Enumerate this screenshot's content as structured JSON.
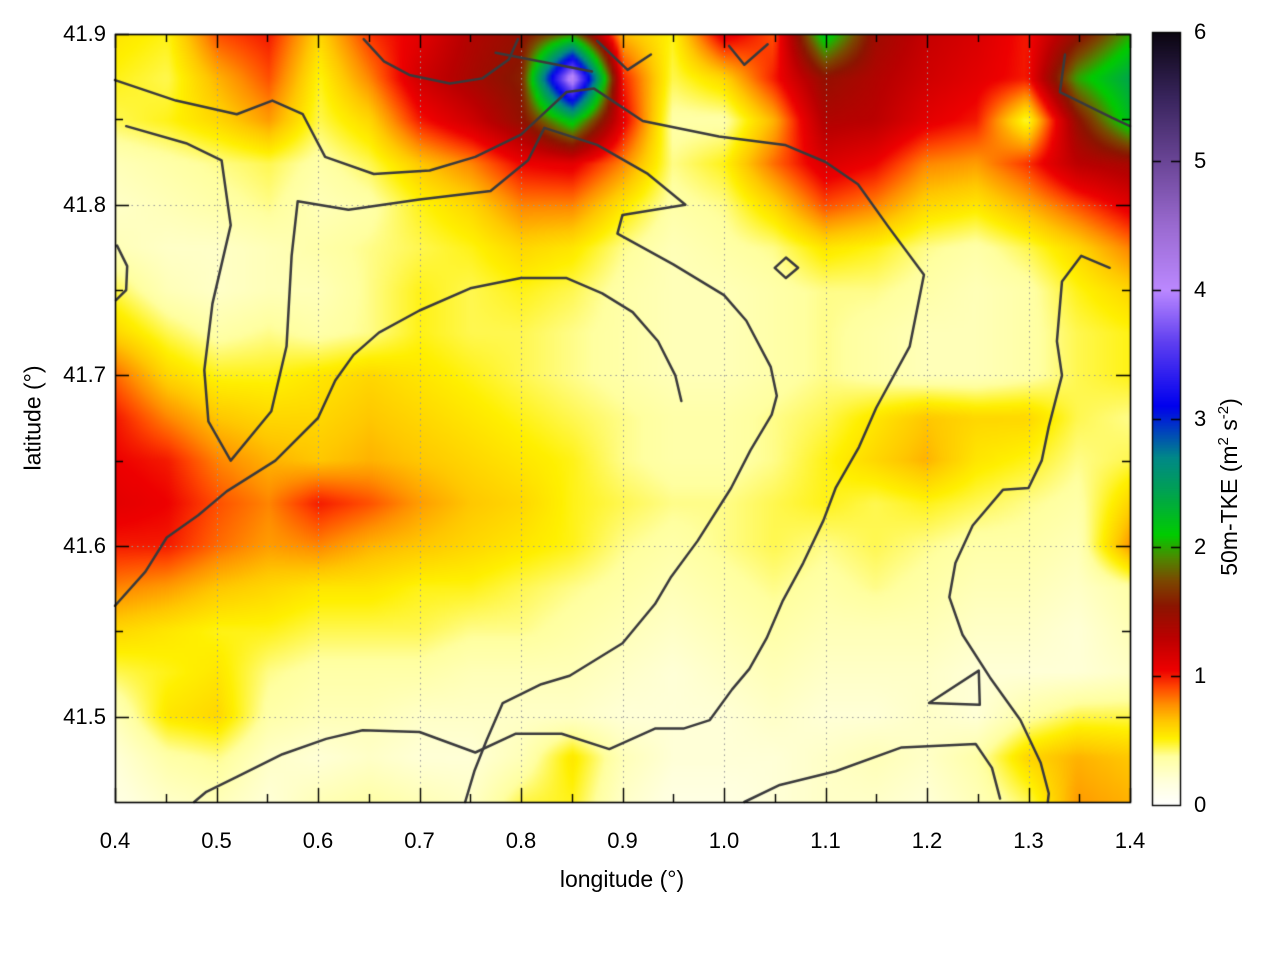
{
  "axes": {
    "xlabel": "longitude (°)",
    "ylabel": "latitude (°)"
  },
  "colorbar": {
    "label": {
      "pre": "50m-TKE (m",
      "sup1": "2",
      "mid": " s",
      "sup2": "-2",
      "post": ")"
    },
    "tick_labels": [
      "0",
      "1",
      "2",
      "3",
      "4",
      "5",
      "6"
    ],
    "tick_values": [
      0,
      1,
      2,
      3,
      4,
      5,
      6
    ],
    "range": [
      0,
      6
    ]
  },
  "chart_data": {
    "type": "heatmap",
    "title": "",
    "xlabel": "longitude (°)",
    "ylabel": "latitude (°)",
    "zlabel": "50m-TKE (m2 s-2)",
    "xlim": [
      0.4,
      1.4
    ],
    "ylim": [
      41.45,
      41.9
    ],
    "zlim": [
      0,
      6
    ],
    "grid_on": true,
    "x_major_ticks": [
      0.4,
      0.5,
      0.6,
      0.7,
      0.8,
      0.9,
      1.0,
      1.1,
      1.2,
      1.3,
      1.4
    ],
    "x_tick_labels": [
      "0.4",
      "0.5",
      "0.6",
      "0.7",
      "0.8",
      "0.9",
      "1.0",
      "1.1",
      "1.2",
      "1.3",
      "1.4"
    ],
    "x_minor_ticks": [
      0.45,
      0.55,
      0.65,
      0.75,
      0.85,
      0.95,
      1.05,
      1.15,
      1.25,
      1.35
    ],
    "y_major_ticks": [
      41.5,
      41.6,
      41.7,
      41.8,
      41.9
    ],
    "y_tick_labels": [
      "41.5",
      "41.6",
      "41.7",
      "41.8",
      "41.9"
    ],
    "y_minor_ticks": [
      41.55,
      41.65,
      41.75,
      41.85
    ],
    "x_gridlines": [
      0.5,
      0.6,
      0.7,
      0.8,
      0.9,
      1.0,
      1.1,
      1.2,
      1.3
    ],
    "y_gridlines": [
      41.5,
      41.6,
      41.7,
      41.8
    ],
    "palette_stops": [
      [
        0.0,
        "#ffffff"
      ],
      [
        0.18,
        "#ffffdd"
      ],
      [
        0.38,
        "#ffffa0"
      ],
      [
        0.52,
        "#fff000"
      ],
      [
        0.65,
        "#ffc800"
      ],
      [
        0.78,
        "#ff9000"
      ],
      [
        0.92,
        "#ff4500"
      ],
      [
        1.05,
        "#ee0000"
      ],
      [
        1.3,
        "#bb0000"
      ],
      [
        1.55,
        "#8b1500"
      ],
      [
        1.75,
        "#7a4a00"
      ],
      [
        1.92,
        "#4e8800"
      ],
      [
        2.1,
        "#00cc00"
      ],
      [
        2.45,
        "#00a055"
      ],
      [
        2.7,
        "#008888"
      ],
      [
        2.9,
        "#0044bb"
      ],
      [
        3.1,
        "#0000ee"
      ],
      [
        3.6,
        "#6040f0"
      ],
      [
        4.0,
        "#bb88ff"
      ],
      [
        4.5,
        "#9a6ad0"
      ],
      [
        5.0,
        "#6a4596"
      ],
      [
        5.5,
        "#38245c"
      ],
      [
        6.0,
        "#0a0510"
      ]
    ],
    "lon_nodes": [
      0.4,
      0.45,
      0.5,
      0.55,
      0.6,
      0.65,
      0.7,
      0.75,
      0.8,
      0.85,
      0.9,
      0.95,
      1.0,
      1.05,
      1.1,
      1.15,
      1.2,
      1.25,
      1.3,
      1.35,
      1.4
    ],
    "lat_nodes": [
      41.9,
      41.875,
      41.85,
      41.825,
      41.8,
      41.775,
      41.75,
      41.725,
      41.7,
      41.675,
      41.65,
      41.625,
      41.6,
      41.575,
      41.55,
      41.525,
      41.5,
      41.475,
      41.45
    ],
    "tke_values": [
      [
        0.55,
        0.5,
        0.9,
        1.0,
        0.6,
        0.95,
        1.1,
        1.35,
        1.5,
        2.0,
        0.7,
        0.5,
        1.1,
        0.9,
        2.2,
        1.45,
        1.25,
        1.15,
        1.0,
        1.5,
        2.0
      ],
      [
        0.5,
        0.45,
        0.7,
        0.9,
        0.5,
        0.8,
        1.2,
        1.4,
        1.6,
        4.2,
        1.0,
        0.45,
        0.6,
        1.0,
        1.5,
        1.35,
        1.2,
        1.1,
        1.0,
        2.0,
        2.4
      ],
      [
        0.45,
        0.5,
        0.6,
        0.75,
        0.45,
        0.6,
        1.0,
        1.2,
        1.5,
        2.2,
        1.1,
        0.35,
        0.35,
        0.7,
        1.35,
        1.3,
        1.1,
        1.0,
        0.45,
        1.5,
        2.2
      ],
      [
        0.3,
        0.35,
        0.4,
        0.45,
        0.35,
        0.45,
        0.65,
        0.8,
        1.05,
        1.1,
        0.8,
        0.4,
        0.5,
        0.85,
        1.15,
        1.05,
        0.8,
        0.75,
        0.95,
        1.3,
        1.4
      ],
      [
        0.25,
        0.3,
        0.35,
        0.4,
        0.3,
        0.35,
        0.5,
        0.6,
        0.8,
        0.8,
        0.55,
        0.35,
        0.4,
        0.6,
        0.9,
        0.8,
        0.6,
        0.55,
        0.7,
        0.9,
        1.1
      ],
      [
        0.3,
        0.25,
        0.25,
        0.3,
        0.35,
        0.4,
        0.45,
        0.5,
        0.6,
        0.55,
        0.4,
        0.3,
        0.35,
        0.4,
        0.55,
        0.5,
        0.4,
        0.35,
        0.45,
        0.6,
        0.8
      ],
      [
        0.45,
        0.3,
        0.25,
        0.3,
        0.3,
        0.4,
        0.5,
        0.45,
        0.5,
        0.45,
        0.35,
        0.3,
        0.3,
        0.35,
        0.4,
        0.4,
        0.35,
        0.3,
        0.35,
        0.5,
        0.6
      ],
      [
        0.6,
        0.45,
        0.35,
        0.4,
        0.35,
        0.4,
        0.5,
        0.45,
        0.45,
        0.4,
        0.35,
        0.3,
        0.3,
        0.35,
        0.4,
        0.35,
        0.3,
        0.3,
        0.35,
        0.45,
        0.5
      ],
      [
        0.85,
        0.6,
        0.5,
        0.5,
        0.55,
        0.6,
        0.55,
        0.5,
        0.45,
        0.4,
        0.35,
        0.3,
        0.3,
        0.35,
        0.4,
        0.35,
        0.3,
        0.3,
        0.35,
        0.45,
        0.5
      ],
      [
        1.0,
        0.8,
        0.65,
        0.6,
        0.6,
        0.65,
        0.6,
        0.55,
        0.5,
        0.45,
        0.4,
        0.35,
        0.35,
        0.4,
        0.45,
        0.55,
        0.65,
        0.6,
        0.6,
        0.45,
        0.4
      ],
      [
        1.05,
        1.0,
        0.8,
        0.7,
        0.65,
        0.7,
        0.65,
        0.6,
        0.55,
        0.5,
        0.4,
        0.35,
        0.35,
        0.4,
        0.5,
        0.6,
        0.7,
        0.55,
        0.5,
        0.4,
        0.45
      ],
      [
        1.1,
        1.05,
        0.9,
        0.8,
        1.0,
        0.9,
        0.75,
        0.65,
        0.6,
        0.5,
        0.45,
        0.4,
        0.4,
        0.45,
        0.5,
        0.45,
        0.5,
        0.45,
        0.4,
        0.35,
        0.6
      ],
      [
        1.0,
        1.0,
        0.85,
        0.75,
        0.8,
        0.7,
        0.65,
        0.6,
        0.55,
        0.5,
        0.4,
        0.35,
        0.4,
        0.45,
        0.4,
        0.45,
        0.4,
        0.35,
        0.35,
        0.3,
        0.75
      ],
      [
        0.8,
        0.75,
        0.65,
        0.6,
        0.55,
        0.55,
        0.5,
        0.5,
        0.45,
        0.4,
        0.35,
        0.3,
        0.35,
        0.4,
        0.35,
        0.4,
        0.35,
        0.3,
        0.3,
        0.25,
        0.35
      ],
      [
        0.6,
        0.55,
        0.5,
        0.5,
        0.45,
        0.45,
        0.45,
        0.4,
        0.4,
        0.35,
        0.3,
        0.25,
        0.3,
        0.35,
        0.3,
        0.3,
        0.3,
        0.25,
        0.25,
        0.2,
        0.3
      ],
      [
        0.45,
        0.5,
        0.55,
        0.4,
        0.35,
        0.35,
        0.35,
        0.3,
        0.3,
        0.3,
        0.25,
        0.2,
        0.25,
        0.3,
        0.25,
        0.25,
        0.25,
        0.2,
        0.2,
        0.2,
        0.25
      ],
      [
        0.3,
        0.55,
        0.6,
        0.35,
        0.3,
        0.3,
        0.25,
        0.25,
        0.25,
        0.25,
        0.2,
        0.2,
        0.2,
        0.25,
        0.2,
        0.2,
        0.25,
        0.2,
        0.35,
        0.45,
        0.45
      ],
      [
        0.2,
        0.35,
        0.4,
        0.25,
        0.2,
        0.25,
        0.2,
        0.2,
        0.3,
        0.55,
        0.3,
        0.2,
        0.2,
        0.2,
        0.25,
        0.3,
        0.25,
        0.35,
        0.6,
        0.7,
        0.65
      ],
      [
        0.15,
        0.25,
        0.3,
        0.2,
        0.3,
        0.35,
        0.3,
        0.25,
        0.45,
        0.5,
        0.25,
        0.15,
        0.15,
        0.2,
        0.25,
        0.25,
        0.2,
        0.3,
        0.45,
        0.75,
        0.7
      ]
    ],
    "contours": [
      [
        [
          0.4,
          41.873
        ],
        [
          0.46,
          41.861
        ],
        [
          0.52,
          41.853
        ],
        [
          0.555,
          41.861
        ],
        [
          0.585,
          41.853
        ],
        [
          0.607,
          41.828
        ],
        [
          0.655,
          41.818
        ],
        [
          0.71,
          41.82
        ],
        [
          0.755,
          41.828
        ],
        [
          0.8,
          41.841
        ],
        [
          0.845,
          41.866
        ],
        [
          0.872,
          41.868
        ],
        [
          0.92,
          41.849
        ],
        [
          0.995,
          41.84
        ],
        [
          1.06,
          41.835
        ],
        [
          1.1,
          41.825
        ],
        [
          1.132,
          41.812
        ],
        [
          1.162,
          41.787
        ],
        [
          1.197,
          41.759
        ],
        [
          1.183,
          41.717
        ],
        [
          1.15,
          41.681
        ],
        [
          1.133,
          41.658
        ],
        [
          1.11,
          41.634
        ],
        [
          1.098,
          41.615
        ],
        [
          1.078,
          41.59
        ],
        [
          1.058,
          41.568
        ],
        [
          1.042,
          41.546
        ],
        [
          1.025,
          41.528
        ],
        [
          1.008,
          41.516
        ],
        [
          0.986,
          41.498
        ],
        [
          0.96,
          41.493
        ],
        [
          0.932,
          41.493
        ],
        [
          0.887,
          41.481
        ],
        [
          0.84,
          41.49
        ],
        [
          0.795,
          41.49
        ],
        [
          0.755,
          41.479
        ],
        [
          0.7,
          41.491
        ],
        [
          0.644,
          41.492
        ],
        [
          0.608,
          41.487
        ],
        [
          0.565,
          41.478
        ],
        [
          0.521,
          41.465
        ],
        [
          0.49,
          41.456
        ],
        [
          0.478,
          41.45
        ]
      ],
      [
        [
          0.411,
          41.846
        ],
        [
          0.47,
          41.836
        ],
        [
          0.505,
          41.826
        ],
        [
          0.514,
          41.788
        ],
        [
          0.496,
          41.742
        ],
        [
          0.488,
          41.703
        ],
        [
          0.492,
          41.673
        ],
        [
          0.514,
          41.65
        ],
        [
          0.554,
          41.679
        ],
        [
          0.569,
          41.717
        ],
        [
          0.574,
          41.77
        ],
        [
          0.58,
          41.802
        ],
        [
          0.63,
          41.797
        ],
        [
          0.7,
          41.803
        ],
        [
          0.77,
          41.808
        ],
        [
          0.807,
          41.826
        ],
        [
          0.823,
          41.845
        ],
        [
          0.875,
          41.835
        ],
        [
          0.925,
          41.818
        ],
        [
          0.962,
          41.8
        ],
        [
          0.9,
          41.794
        ],
        [
          0.895,
          41.783
        ],
        [
          0.95,
          41.765
        ],
        [
          1.0,
          41.747
        ],
        [
          1.022,
          41.732
        ],
        [
          1.046,
          41.705
        ],
        [
          1.052,
          41.688
        ],
        [
          1.047,
          41.677
        ],
        [
          1.026,
          41.656
        ],
        [
          1.007,
          41.634
        ],
        [
          0.974,
          41.603
        ],
        [
          0.948,
          41.582
        ],
        [
          0.932,
          41.566
        ],
        [
          0.9,
          41.543
        ],
        [
          0.848,
          41.524
        ],
        [
          0.82,
          41.519
        ],
        [
          0.782,
          41.508
        ],
        [
          0.766,
          41.486
        ],
        [
          0.754,
          41.468
        ],
        [
          0.745,
          41.45
        ]
      ],
      [
        [
          0.4,
          41.565
        ],
        [
          0.43,
          41.585
        ],
        [
          0.451,
          41.605
        ],
        [
          0.482,
          41.618
        ],
        [
          0.51,
          41.632
        ],
        [
          0.558,
          41.65
        ],
        [
          0.6,
          41.675
        ],
        [
          0.617,
          41.697
        ],
        [
          0.635,
          41.712
        ],
        [
          0.66,
          41.725
        ],
        [
          0.7,
          41.738
        ],
        [
          0.75,
          41.751
        ],
        [
          0.8,
          41.757
        ],
        [
          0.845,
          41.757
        ],
        [
          0.88,
          41.748
        ],
        [
          0.91,
          41.737
        ],
        [
          0.935,
          41.72
        ],
        [
          0.952,
          41.7
        ],
        [
          0.958,
          41.685
        ]
      ],
      [
        [
          1.38,
          41.763
        ],
        [
          1.352,
          41.77
        ],
        [
          1.333,
          41.755
        ],
        [
          1.328,
          41.72
        ],
        [
          1.333,
          41.7
        ],
        [
          1.32,
          41.67
        ],
        [
          1.313,
          41.65
        ],
        [
          1.3,
          41.634
        ],
        [
          1.275,
          41.633
        ],
        [
          1.245,
          41.612
        ],
        [
          1.228,
          41.59
        ],
        [
          1.222,
          41.57
        ],
        [
          1.235,
          41.548
        ],
        [
          1.262,
          41.523
        ],
        [
          1.292,
          41.498
        ],
        [
          1.312,
          41.473
        ],
        [
          1.32,
          41.455
        ],
        [
          1.319,
          41.45
        ]
      ],
      [
        [
          1.02,
          41.45
        ],
        [
          1.055,
          41.46
        ],
        [
          1.11,
          41.468
        ],
        [
          1.175,
          41.482
        ],
        [
          1.248,
          41.484
        ],
        [
          1.264,
          41.47
        ],
        [
          1.272,
          41.452
        ]
      ],
      [
        [
          1.202,
          41.508
        ],
        [
          1.251,
          41.527
        ],
        [
          1.252,
          41.507
        ],
        [
          1.202,
          41.508
        ]
      ],
      [
        [
          1.05,
          41.763
        ],
        [
          1.061,
          41.769
        ],
        [
          1.073,
          41.763
        ],
        [
          1.061,
          41.757
        ],
        [
          1.05,
          41.763
        ]
      ],
      [
        [
          0.402,
          41.776
        ],
        [
          0.412,
          41.764
        ],
        [
          0.411,
          41.75
        ],
        [
          0.401,
          41.744
        ]
      ],
      [
        [
          0.645,
          41.897
        ],
        [
          0.665,
          41.884
        ],
        [
          0.69,
          41.876
        ],
        [
          0.73,
          41.871
        ],
        [
          0.762,
          41.874
        ],
        [
          0.788,
          41.885
        ],
        [
          0.797,
          41.897
        ]
      ],
      [
        [
          0.875,
          41.896
        ],
        [
          0.905,
          41.879
        ],
        [
          0.928,
          41.888
        ]
      ],
      [
        [
          1.005,
          41.893
        ],
        [
          1.02,
          41.882
        ],
        [
          1.043,
          41.894
        ]
      ],
      [
        [
          0.775,
          41.889
        ],
        [
          0.87,
          41.878
        ]
      ],
      [
        [
          1.336,
          41.888
        ],
        [
          1.331,
          41.866
        ],
        [
          1.382,
          41.851
        ],
        [
          1.4,
          41.846
        ]
      ]
    ],
    "styles": {
      "contour_color": "#3a3a3c",
      "grid_color": "#999999",
      "axis_color": "#000000",
      "background": "#ffffff"
    }
  }
}
